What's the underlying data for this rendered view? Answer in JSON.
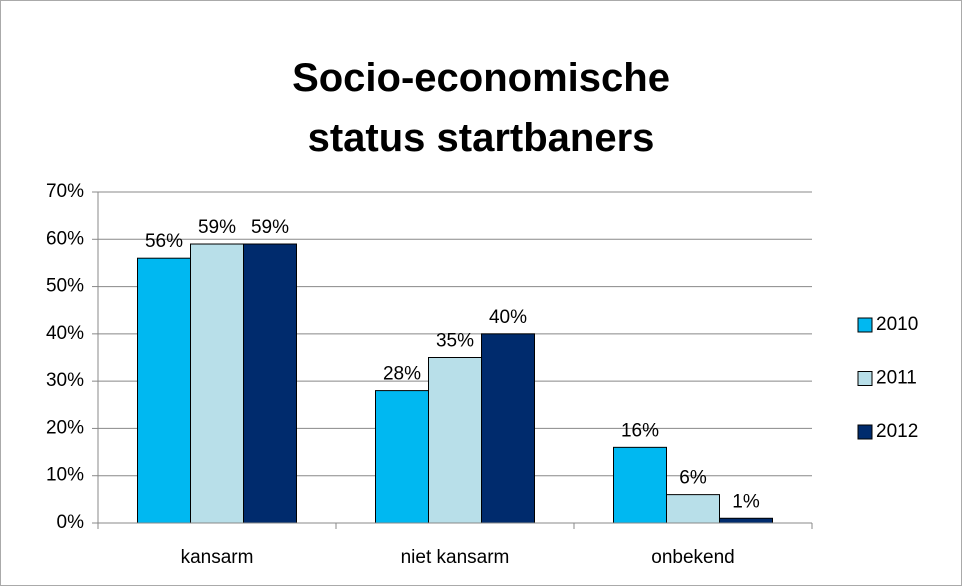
{
  "chart_data": {
    "type": "bar",
    "title": "Socio-economische status startbaners",
    "categories": [
      "kansarm",
      "niet kansarm",
      "onbekend"
    ],
    "series": [
      {
        "name": "2010",
        "color": "#00b8f1",
        "values": [
          56,
          28,
          16
        ],
        "value_labels": [
          "56%",
          "28%",
          "16%"
        ]
      },
      {
        "name": "2011",
        "color": "#b8dfe9",
        "values": [
          59,
          35,
          6
        ],
        "value_labels": [
          "59%",
          "35%",
          "6%"
        ]
      },
      {
        "name": "2012",
        "color": "#002b6d",
        "values": [
          59,
          40,
          1
        ],
        "value_labels": [
          "59%",
          "40%",
          "1%"
        ]
      }
    ],
    "ylim": [
      0,
      70
    ],
    "yticks": [
      {
        "value": 0,
        "label": "0%"
      },
      {
        "value": 10,
        "label": "10%"
      },
      {
        "value": 20,
        "label": "20%"
      },
      {
        "value": 30,
        "label": "30%"
      },
      {
        "value": 40,
        "label": "40%"
      },
      {
        "value": 50,
        "label": "50%"
      },
      {
        "value": 60,
        "label": "60%"
      },
      {
        "value": 70,
        "label": "70%"
      }
    ],
    "grid": true,
    "legend": "right"
  }
}
